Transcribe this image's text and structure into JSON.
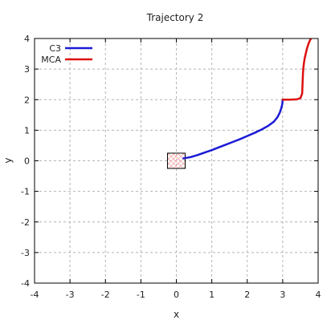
{
  "chart_data": {
    "type": "line",
    "title": "Trajectory 2",
    "xlabel": "x",
    "ylabel": "y",
    "xlim": [
      -4,
      4
    ],
    "ylim": [
      -4,
      4
    ],
    "xticks": [
      -4,
      -3,
      -2,
      -1,
      0,
      1,
      2,
      3,
      4
    ],
    "yticks": [
      -4,
      -3,
      -2,
      -1,
      0,
      1,
      2,
      3,
      4
    ],
    "grid": true,
    "legend_position": "top-left",
    "obstacle": {
      "x0": -0.25,
      "x1": 0.25,
      "y0": -0.25,
      "y1": 0.25,
      "hatch_color": "#f2aaaa"
    },
    "series": [
      {
        "name": "C3",
        "color": "#1b1bd6",
        "x": [
          0.2,
          0.4,
          0.6,
          0.8,
          1.0,
          1.2,
          1.4,
          1.6,
          1.8,
          2.0,
          2.2,
          2.4,
          2.6,
          2.75,
          2.85,
          2.92,
          2.96,
          2.99,
          3.0
        ],
        "y": [
          0.08,
          0.12,
          0.19,
          0.27,
          0.35,
          0.44,
          0.53,
          0.62,
          0.71,
          0.81,
          0.91,
          1.02,
          1.15,
          1.28,
          1.42,
          1.58,
          1.72,
          1.86,
          2.0
        ]
      },
      {
        "name": "MCA",
        "color": "#dd1111",
        "x": [
          3.0,
          3.2,
          3.4,
          3.5,
          3.55,
          3.56,
          3.57,
          3.58,
          3.6,
          3.62,
          3.65,
          3.68,
          3.72,
          3.76,
          3.8
        ],
        "y": [
          2.0,
          2.0,
          2.01,
          2.05,
          2.2,
          2.5,
          2.8,
          3.0,
          3.2,
          3.35,
          3.5,
          3.65,
          3.8,
          3.92,
          4.0
        ]
      }
    ]
  }
}
